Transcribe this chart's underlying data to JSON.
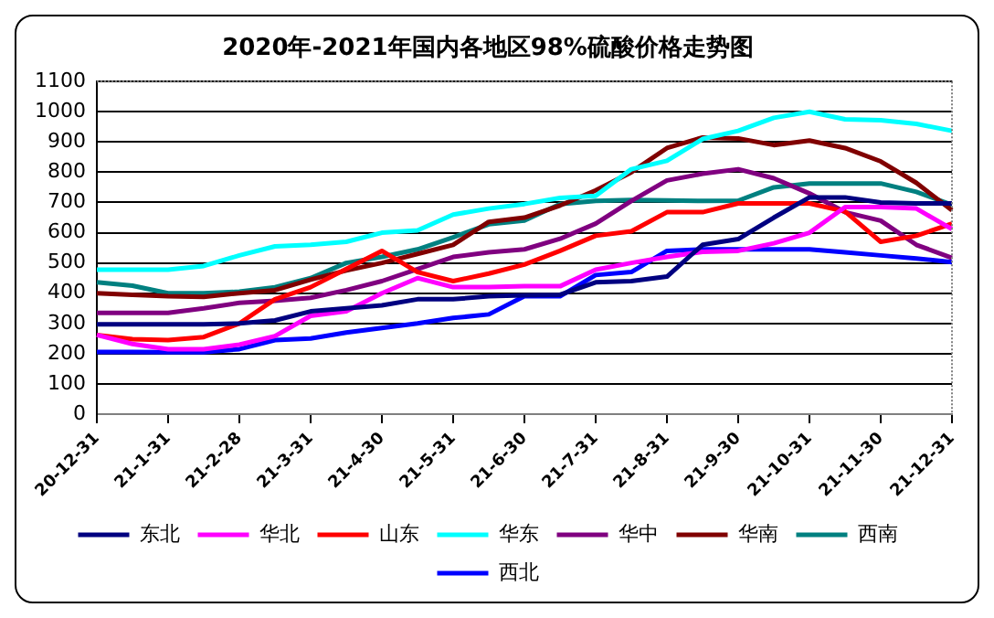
{
  "chart_data": {
    "type": "line",
    "title": "2020年-2021年国内各地区98%硫酸价格走势图",
    "categories": [
      "20-12-31",
      null,
      "21-1-31",
      null,
      "21-2-28",
      null,
      "21-3-31",
      null,
      "21-4-30",
      null,
      "21-5-31",
      null,
      "21-6-30",
      null,
      "21-7-31",
      null,
      "21-8-31",
      null,
      "21-9-30",
      null,
      "21-10-31",
      null,
      "21-11-30",
      null,
      "21-12-31"
    ],
    "series": [
      {
        "name": "东北",
        "color": "#000080",
        "values": [
          297,
          297,
          297,
          297,
          300,
          310,
          340,
          350,
          360,
          380,
          380,
          390,
          393,
          395,
          436,
          440,
          455,
          560,
          579,
          650,
          717,
          717,
          700,
          697,
          697
        ]
      },
      {
        "name": "华北",
        "color": "#ff00ff",
        "values": [
          262,
          232,
          215,
          215,
          230,
          258,
          325,
          340,
          400,
          450,
          420,
          420,
          423,
          423,
          478,
          500,
          520,
          537,
          540,
          565,
          600,
          685,
          685,
          680,
          612
        ]
      },
      {
        "name": "山东",
        "color": "#ff0000",
        "values": [
          262,
          248,
          245,
          255,
          300,
          380,
          420,
          480,
          540,
          470,
          440,
          465,
          495,
          540,
          590,
          605,
          668,
          668,
          697,
          697,
          697,
          670,
          570,
          590,
          630
        ]
      },
      {
        "name": "华东",
        "color": "#00ffff",
        "values": [
          478,
          478,
          478,
          490,
          525,
          555,
          560,
          570,
          600,
          608,
          660,
          680,
          695,
          715,
          722,
          810,
          838,
          910,
          937,
          980,
          1000,
          975,
          972,
          960,
          937
        ]
      },
      {
        "name": "华中",
        "color": "#800080",
        "values": [
          335,
          335,
          335,
          350,
          368,
          375,
          385,
          410,
          440,
          480,
          520,
          535,
          545,
          580,
          630,
          705,
          773,
          795,
          810,
          780,
          730,
          668,
          640,
          560,
          517
        ]
      },
      {
        "name": "华南",
        "color": "#800000",
        "values": [
          400,
          395,
          390,
          388,
          400,
          410,
          445,
          475,
          500,
          530,
          560,
          636,
          650,
          690,
          740,
          800,
          880,
          915,
          912,
          890,
          905,
          880,
          836,
          765,
          674
        ]
      },
      {
        "name": "西南",
        "color": "#008080",
        "values": [
          436,
          425,
          400,
          400,
          405,
          420,
          450,
          500,
          520,
          545,
          585,
          628,
          640,
          695,
          705,
          708,
          707,
          705,
          706,
          750,
          763,
          763,
          763,
          735,
          692
        ]
      },
      {
        "name": "西北",
        "color": "#0000ff",
        "values": [
          206,
          206,
          205,
          205,
          215,
          245,
          250,
          270,
          285,
          300,
          318,
          330,
          390,
          390,
          460,
          470,
          540,
          545,
          545,
          545,
          545,
          535,
          525,
          515,
          503
        ]
      }
    ],
    "ylim": [
      0,
      1100
    ],
    "yticks": [
      0,
      100,
      200,
      300,
      400,
      500,
      600,
      700,
      800,
      900,
      1000,
      1100
    ],
    "grid": "y",
    "legend": "bottom",
    "marker": "none",
    "line_style": "solid"
  }
}
